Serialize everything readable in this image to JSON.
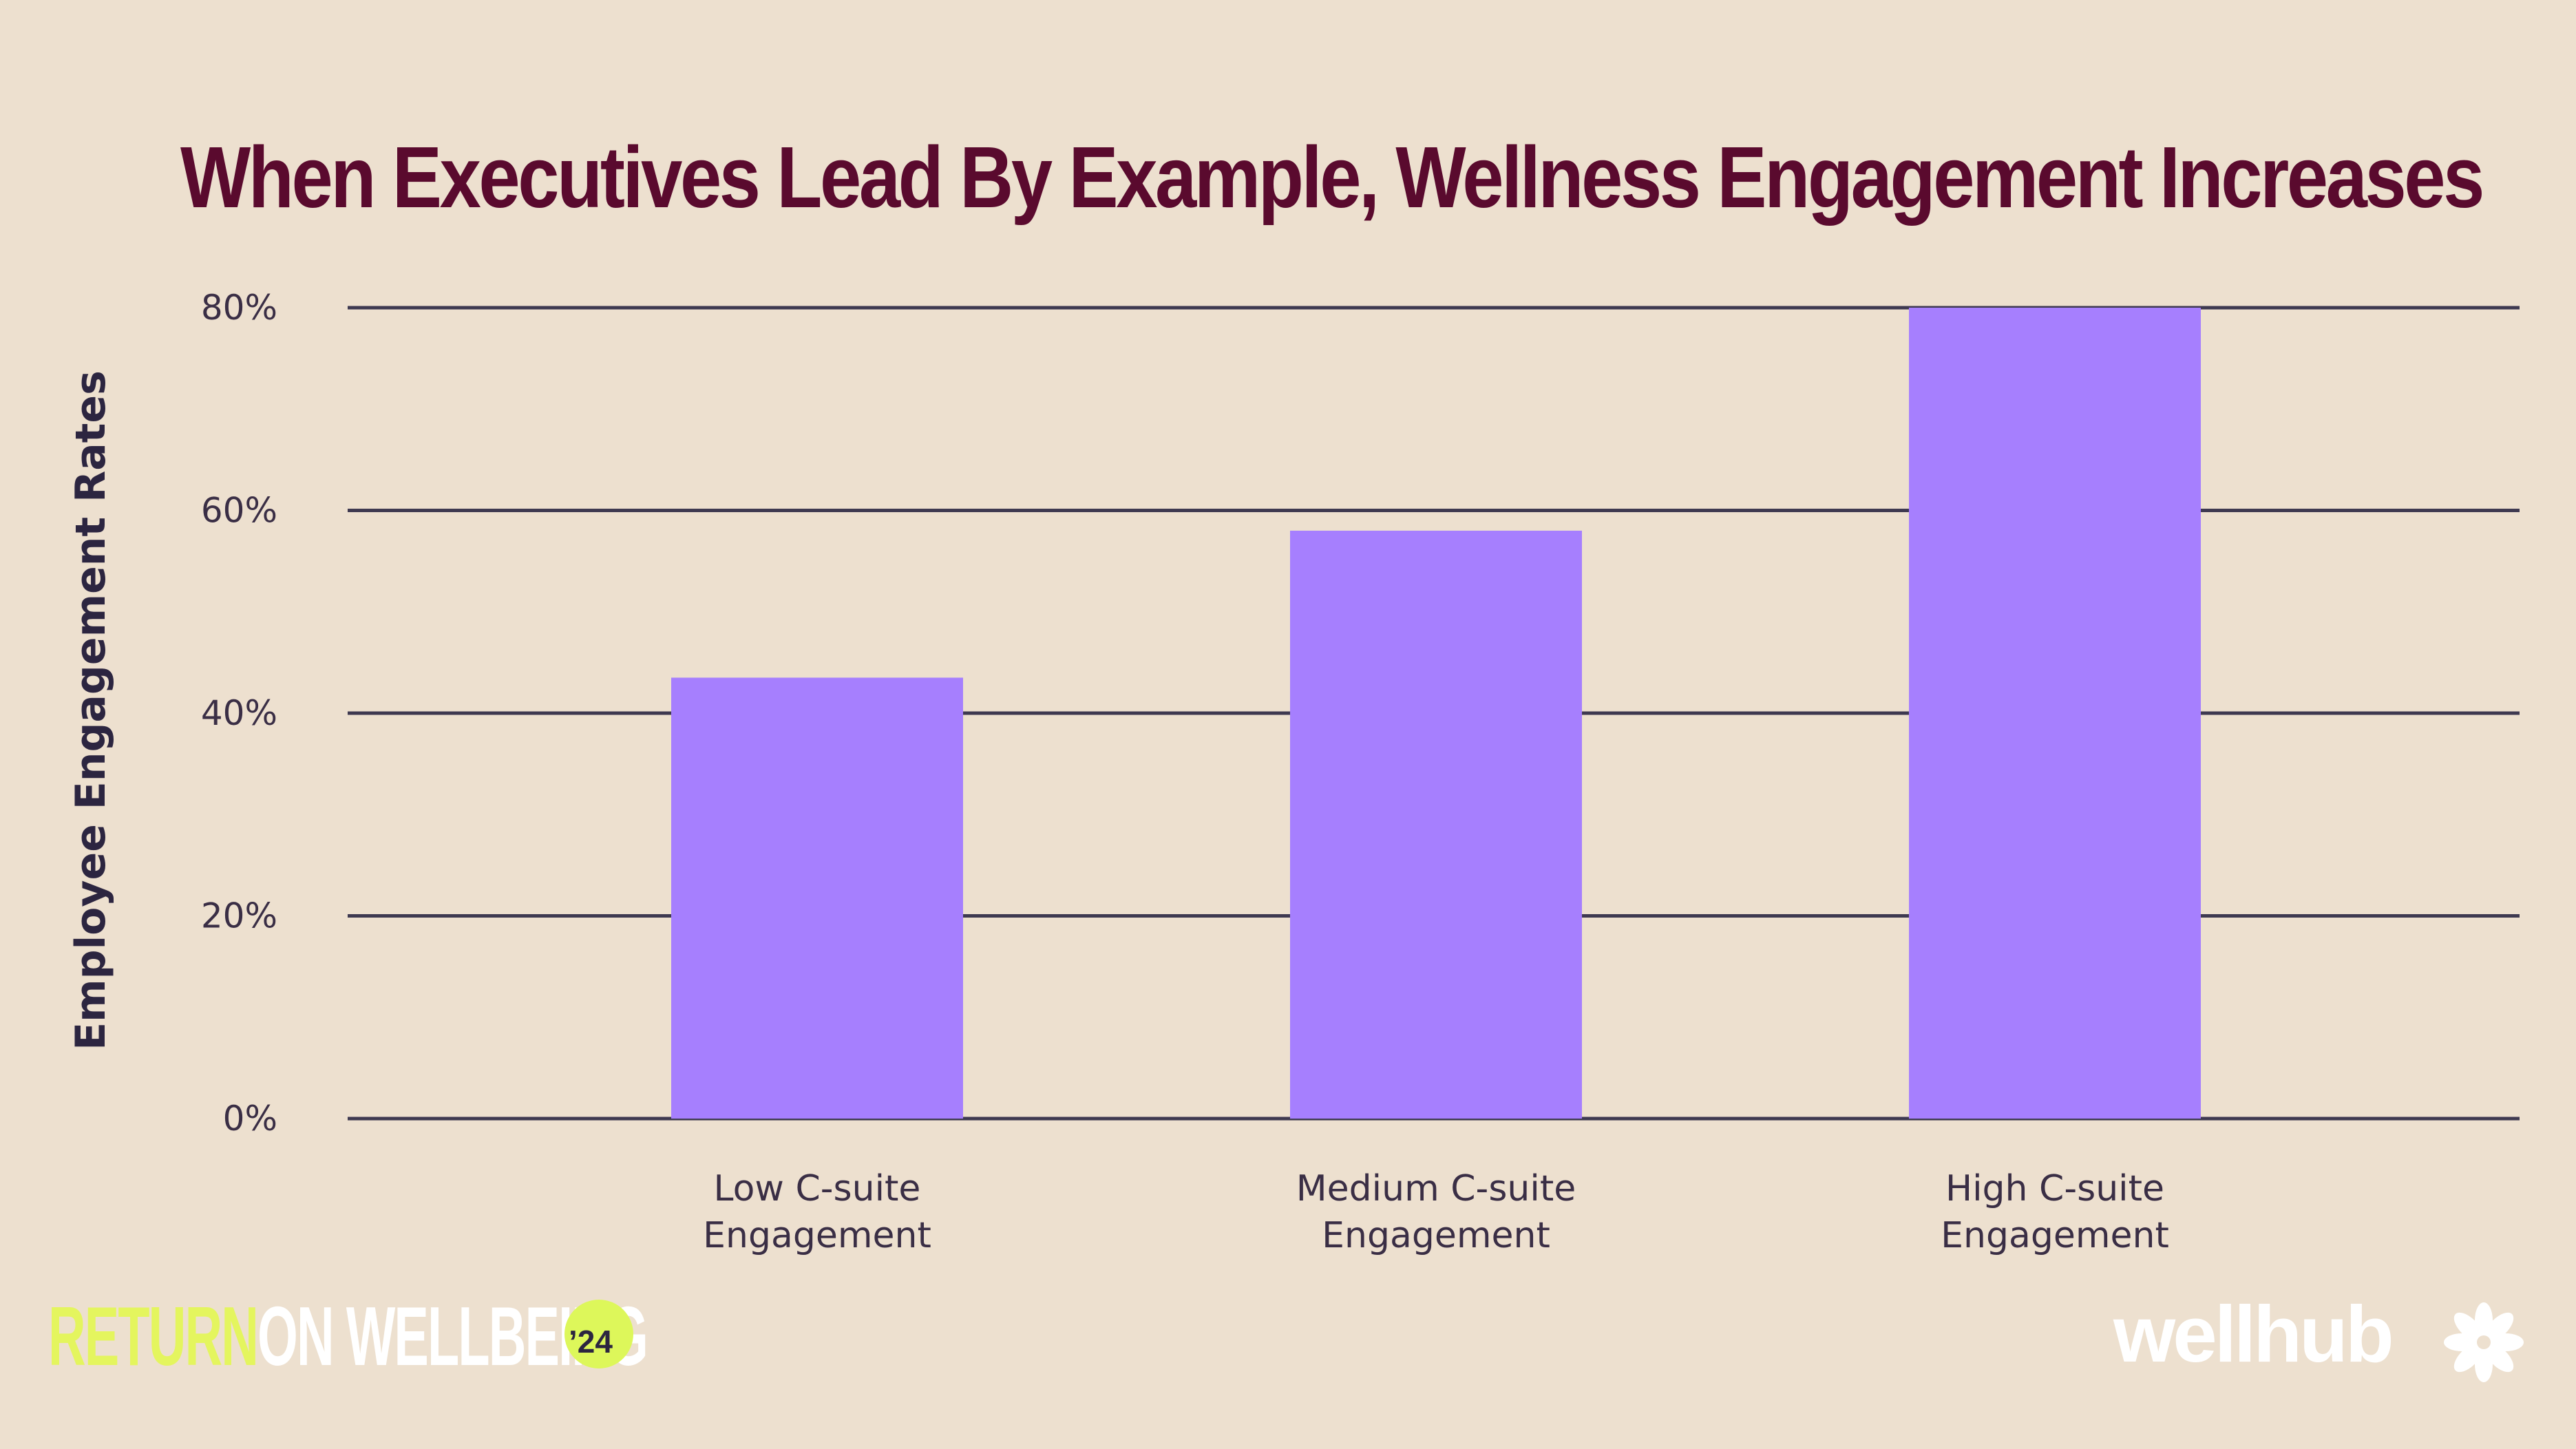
{
  "chart_data": {
    "type": "bar",
    "title": "When Executives Lead By Example, Wellness Engagement Increases",
    "ylabel": "Employee Engagement Rates",
    "xlabel": "",
    "categories": [
      [
        "Low C-suite",
        "Engagement"
      ],
      [
        "Medium C-suite",
        "Engagement"
      ],
      [
        "High C-suite",
        "Engagement"
      ]
    ],
    "values": [
      43.5,
      58,
      80
    ],
    "ylim": [
      0,
      80
    ],
    "yticks": [
      0,
      20,
      40,
      60,
      80
    ],
    "ytick_labels": [
      "0%",
      "20%",
      "40%",
      "60%",
      "80%"
    ],
    "grid": true,
    "legend": "none",
    "colors": {
      "bar": "#A67FFE",
      "title": "#5A0A2E",
      "background": "#EDE0CF"
    }
  },
  "footer": {
    "left_word1": "RETURN",
    "left_word2": "ON WELLBEING",
    "badge": "’24",
    "right_brand": "wellhub",
    "right_icon": "flower-icon"
  }
}
